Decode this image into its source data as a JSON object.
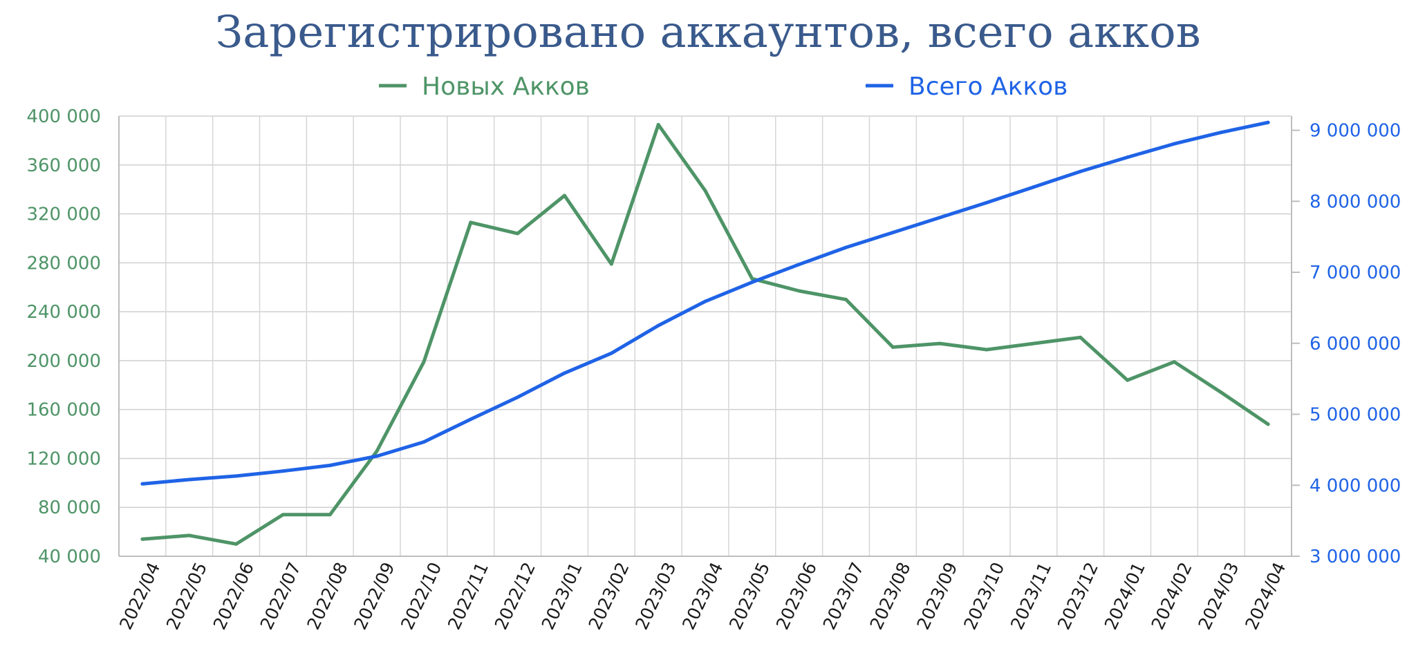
{
  "chart_data": {
    "type": "line",
    "title": "Зарегистрировано аккаунтов, всего акков",
    "title_color": "#3a5a8c",
    "categories": [
      "2022/04",
      "2022/05",
      "2022/06",
      "2022/07",
      "2022/08",
      "2022/09",
      "2022/10",
      "2022/11",
      "2022/12",
      "2023/01",
      "2023/02",
      "2023/03",
      "2023/04",
      "2023/05",
      "2023/06",
      "2023/07",
      "2023/08",
      "2023/09",
      "2023/10",
      "2023/11",
      "2023/12",
      "2024/01",
      "2024/02",
      "2024/03",
      "2024/04"
    ],
    "series": [
      {
        "name": "Новых Акков",
        "axis": "left",
        "color": "#4e9467",
        "values": [
          54000,
          57000,
          50000,
          74000,
          74000,
          126000,
          199000,
          313000,
          304000,
          335000,
          279000,
          393000,
          339000,
          267000,
          257000,
          250000,
          211000,
          214000,
          209000,
          214000,
          219000,
          184000,
          199000,
          174000,
          148000
        ]
      },
      {
        "name": "Всего Акков",
        "axis": "right",
        "color": "#1f63e6",
        "values": [
          4020000,
          4080000,
          4130000,
          4200000,
          4280000,
          4410000,
          4610000,
          4930000,
          5240000,
          5580000,
          5860000,
          6250000,
          6590000,
          6860000,
          7110000,
          7350000,
          7560000,
          7770000,
          7980000,
          8200000,
          8420000,
          8620000,
          8810000,
          8970000,
          9110000
        ]
      }
    ],
    "y_left": {
      "ylim": [
        40000,
        400000
      ],
      "ticks": [
        40000,
        80000,
        120000,
        160000,
        200000,
        240000,
        280000,
        320000,
        360000,
        400000
      ],
      "tick_labels": [
        "40 000",
        "80 000",
        "120 000",
        "160 000",
        "200 000",
        "240 000",
        "280 000",
        "320 000",
        "360 000",
        "400 000"
      ],
      "color": "#4e9467"
    },
    "y_right": {
      "ylim": [
        3000000,
        9200000
      ],
      "ticks": [
        3000000,
        4000000,
        5000000,
        6000000,
        7000000,
        8000000,
        9000000
      ],
      "tick_labels": [
        "3 000 000",
        "4 000 000",
        "5 000 000",
        "6 000 000",
        "7 000 000",
        "8 000 000",
        "9 000 000"
      ],
      "color": "#1f63e6"
    },
    "grid": true,
    "legend_position": "top"
  }
}
